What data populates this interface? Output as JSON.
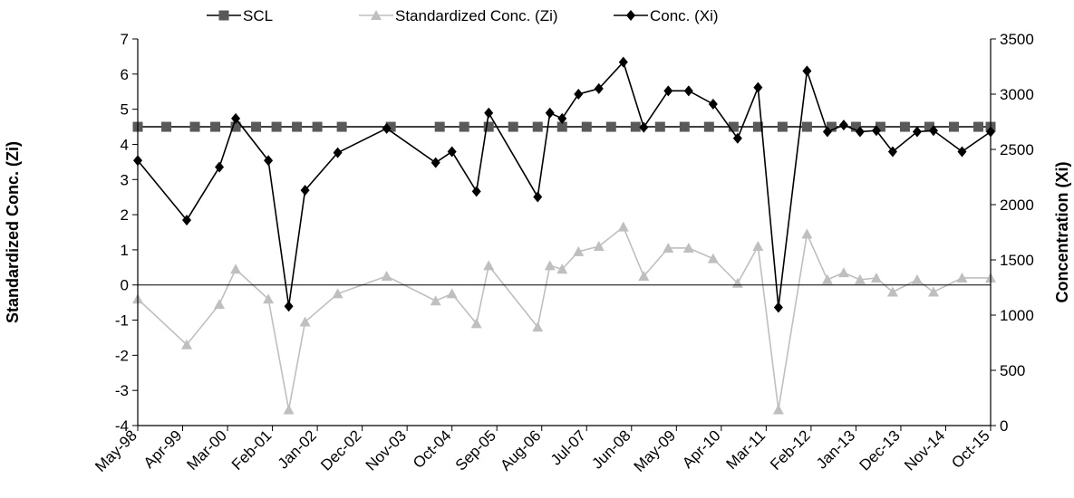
{
  "chart_data": {
    "type": "line",
    "y_left": {
      "label": "Standardized Conc. (Zi)",
      "ylim": [
        -4,
        7
      ],
      "ticks": [
        -4,
        -3,
        -2,
        -1,
        0,
        1,
        2,
        3,
        4,
        5,
        6,
        7
      ]
    },
    "y_right": {
      "label": "Concentration (Xi)",
      "ylim": [
        0,
        3500
      ],
      "ticks": [
        0,
        500,
        1000,
        1500,
        2000,
        2500,
        3000,
        3500
      ]
    },
    "x_tick_labels": [
      "May-98",
      "Apr-99",
      "Mar-00",
      "Feb-01",
      "Jan-02",
      "Dec-02",
      "Nov-03",
      "Oct-04",
      "Sep-05",
      "Aug-06",
      "Jul-07",
      "Jun-08",
      "May-09",
      "Apr-10",
      "Mar-11",
      "Feb-12",
      "Jan-13",
      "Dec-13",
      "Nov-14",
      "Oct-15"
    ],
    "x_range": {
      "start": "May-98",
      "end": "Oct-15"
    },
    "grid": false,
    "legend_position": "top",
    "series": [
      {
        "name": "SCL",
        "axis": "left",
        "marker": "square",
        "color": "#595959",
        "x": [
          "May-98",
          "Dec-98",
          "Jul-99",
          "Dec-99",
          "May-00",
          "Oct-00",
          "Mar-01",
          "Aug-01",
          "Jan-02",
          "Jul-02",
          "Jul-03",
          "Jul-04",
          "Jan-05",
          "Jul-05",
          "Jan-06",
          "Jul-06",
          "Jan-07",
          "Jul-07",
          "Jan-08",
          "Jul-08",
          "Jan-09",
          "Jul-09",
          "Jan-10",
          "Jul-10",
          "Jan-11",
          "Jul-11",
          "Jan-12",
          "Jul-12",
          "Jan-13",
          "Jul-13",
          "Jan-14",
          "Jul-14",
          "Jan-15",
          "Jul-15",
          "Oct-15"
        ],
        "values": [
          4.5,
          4.5,
          4.5,
          4.5,
          4.5,
          4.5,
          4.5,
          4.5,
          4.5,
          4.5,
          4.5,
          4.5,
          4.5,
          4.5,
          4.5,
          4.5,
          4.5,
          4.5,
          4.5,
          4.5,
          4.5,
          4.5,
          4.5,
          4.5,
          4.5,
          4.5,
          4.5,
          4.5,
          4.5,
          4.5,
          4.5,
          4.5,
          4.5,
          4.5,
          4.5
        ]
      },
      {
        "name": "Standardized Conc. (Zi)",
        "axis": "left",
        "marker": "triangle",
        "color": "#bfbfbf",
        "x": [
          "May-98",
          "May-99",
          "Jan-00",
          "May-00",
          "Jan-01",
          "Jun-01",
          "Oct-01",
          "Jun-02",
          "Jun-03",
          "Jun-04",
          "Oct-04",
          "Apr-05",
          "Jul-05",
          "Jul-06",
          "Oct-06",
          "Jan-07",
          "May-07",
          "Oct-07",
          "Apr-08",
          "Sep-08",
          "Mar-09",
          "Aug-09",
          "Feb-10",
          "Aug-10",
          "Jan-11",
          "Jun-11",
          "Jan-12",
          "Jun-12",
          "Oct-12",
          "Feb-13",
          "Jun-13",
          "Oct-13",
          "Apr-14",
          "Aug-14",
          "Mar-15",
          "Oct-15"
        ],
        "values": [
          -0.4,
          -1.7,
          -0.55,
          0.45,
          -0.4,
          -3.55,
          -1.05,
          -0.25,
          0.25,
          -0.45,
          -0.25,
          -1.1,
          0.55,
          -1.2,
          0.55,
          0.45,
          0.95,
          1.1,
          1.65,
          0.25,
          1.05,
          1.05,
          0.75,
          0.05,
          1.1,
          -3.55,
          1.45,
          0.15,
          0.35,
          0.15,
          0.2,
          -0.2,
          0.15,
          -0.2,
          0.2,
          0.2
        ]
      },
      {
        "name": "Conc. (Xi)",
        "axis": "right",
        "marker": "diamond",
        "color": "#000000",
        "x": [
          "May-98",
          "May-99",
          "Jan-00",
          "May-00",
          "Jan-01",
          "Jun-01",
          "Oct-01",
          "Jun-02",
          "Jun-03",
          "Jun-04",
          "Oct-04",
          "Apr-05",
          "Jul-05",
          "Jul-06",
          "Oct-06",
          "Jan-07",
          "May-07",
          "Oct-07",
          "Apr-08",
          "Sep-08",
          "Mar-09",
          "Aug-09",
          "Feb-10",
          "Aug-10",
          "Jan-11",
          "Jun-11",
          "Jan-12",
          "Jun-12",
          "Oct-12",
          "Feb-13",
          "Jun-13",
          "Oct-13",
          "Apr-14",
          "Aug-14",
          "Mar-15",
          "Oct-15"
        ],
        "values": [
          2400,
          1860,
          2340,
          2780,
          2400,
          1080,
          2130,
          2470,
          2690,
          2380,
          2480,
          2120,
          2830,
          2070,
          2830,
          2780,
          3000,
          3050,
          3290,
          2700,
          3030,
          3030,
          2910,
          2600,
          3060,
          1070,
          3210,
          2660,
          2720,
          2660,
          2670,
          2480,
          2660,
          2670,
          2480,
          2660
        ]
      }
    ]
  }
}
